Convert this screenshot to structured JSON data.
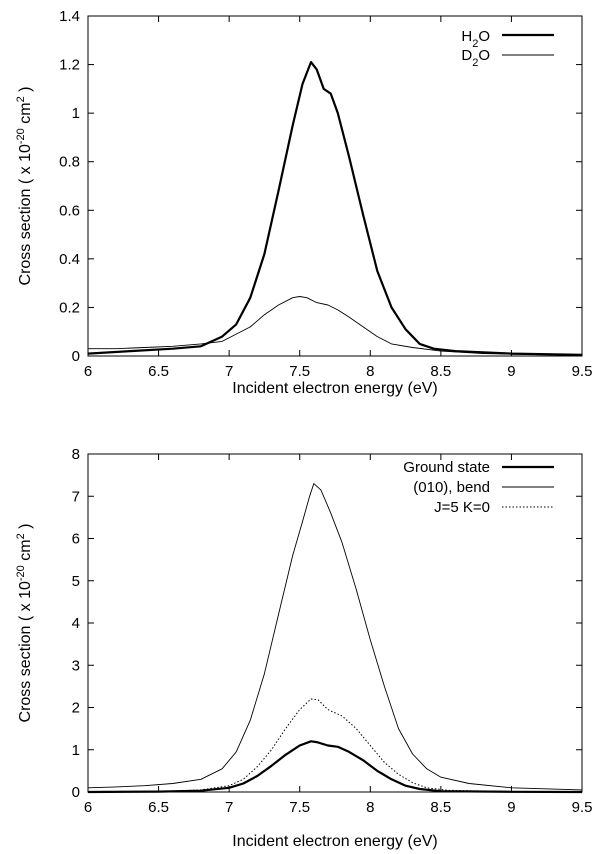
{
  "chart_data": [
    {
      "type": "line",
      "xlabel": "Incident electron energy (eV)",
      "ylabel": "Cross section ( x 10",
      "ylabel_sup": "-20",
      "ylabel_tail": " cm",
      "ylabel_sup2": "2",
      "ylabel_end": " )",
      "xlim": [
        6,
        9.5
      ],
      "ylim": [
        0,
        1.4
      ],
      "xticks": [
        6,
        6.5,
        7,
        7.5,
        8,
        8.5,
        9,
        9.5
      ],
      "xtick_labels": [
        "6",
        "6.5",
        "7",
        "7.5",
        "8",
        "8.5",
        "9",
        "9.5"
      ],
      "yticks": [
        0,
        0.2,
        0.4,
        0.6,
        0.8,
        1,
        1.2,
        1.4
      ],
      "ytick_labels": [
        "0",
        "0.2",
        "0.4",
        "0.6",
        "0.8",
        "1",
        "1.2",
        "1.4"
      ],
      "grid": false,
      "legend_position": "top-right",
      "series": [
        {
          "name": "H2O",
          "name_parts": [
            "H",
            "2",
            "O"
          ],
          "style": "thick",
          "points": [
            [
              6.0,
              0.01
            ],
            [
              6.3,
              0.02
            ],
            [
              6.6,
              0.03
            ],
            [
              6.8,
              0.04
            ],
            [
              6.95,
              0.08
            ],
            [
              7.05,
              0.13
            ],
            [
              7.15,
              0.24
            ],
            [
              7.25,
              0.42
            ],
            [
              7.35,
              0.68
            ],
            [
              7.45,
              0.95
            ],
            [
              7.52,
              1.12
            ],
            [
              7.58,
              1.21
            ],
            [
              7.62,
              1.18
            ],
            [
              7.67,
              1.1
            ],
            [
              7.72,
              1.08
            ],
            [
              7.77,
              1.0
            ],
            [
              7.85,
              0.82
            ],
            [
              7.95,
              0.58
            ],
            [
              8.05,
              0.35
            ],
            [
              8.15,
              0.2
            ],
            [
              8.25,
              0.11
            ],
            [
              8.35,
              0.05
            ],
            [
              8.45,
              0.03
            ],
            [
              8.6,
              0.02
            ],
            [
              9.0,
              0.01
            ],
            [
              9.5,
              0.005
            ]
          ]
        },
        {
          "name": "D2O",
          "name_parts": [
            "D",
            "2",
            "O"
          ],
          "style": "thin",
          "points": [
            [
              6.0,
              0.03
            ],
            [
              6.2,
              0.03
            ],
            [
              6.4,
              0.035
            ],
            [
              6.6,
              0.04
            ],
            [
              6.8,
              0.05
            ],
            [
              6.95,
              0.06
            ],
            [
              7.05,
              0.09
            ],
            [
              7.15,
              0.12
            ],
            [
              7.25,
              0.17
            ],
            [
              7.35,
              0.21
            ],
            [
              7.45,
              0.24
            ],
            [
              7.5,
              0.245
            ],
            [
              7.55,
              0.24
            ],
            [
              7.62,
              0.22
            ],
            [
              7.7,
              0.21
            ],
            [
              7.77,
              0.19
            ],
            [
              7.85,
              0.16
            ],
            [
              7.95,
              0.12
            ],
            [
              8.05,
              0.08
            ],
            [
              8.15,
              0.05
            ],
            [
              8.3,
              0.035
            ],
            [
              8.5,
              0.02
            ],
            [
              8.8,
              0.01
            ],
            [
              9.2,
              0.006
            ],
            [
              9.5,
              0.005
            ]
          ]
        }
      ]
    },
    {
      "type": "line",
      "xlabel": "Incident electron energy (eV)",
      "ylabel": "Cross section ( x 10",
      "ylabel_sup": "-20",
      "ylabel_tail": " cm",
      "ylabel_sup2": "2",
      "ylabel_end": " )",
      "xlim": [
        6,
        9.5
      ],
      "ylim": [
        0,
        8
      ],
      "xticks": [
        6,
        6.5,
        7,
        7.5,
        8,
        8.5,
        9,
        9.5
      ],
      "xtick_labels": [
        "6",
        "6.5",
        "7",
        "7.5",
        "8",
        "8.5",
        "9",
        "9.5"
      ],
      "yticks": [
        0,
        1,
        2,
        3,
        4,
        5,
        6,
        7,
        8
      ],
      "ytick_labels": [
        "0",
        "1",
        "2",
        "3",
        "4",
        "5",
        "6",
        "7",
        "8"
      ],
      "grid": false,
      "legend_position": "top-right",
      "series": [
        {
          "name": "Ground state",
          "style": "thick",
          "points": [
            [
              6.0,
              0.0
            ],
            [
              6.5,
              0.01
            ],
            [
              6.8,
              0.03
            ],
            [
              7.0,
              0.1
            ],
            [
              7.1,
              0.2
            ],
            [
              7.2,
              0.38
            ],
            [
              7.3,
              0.62
            ],
            [
              7.4,
              0.88
            ],
            [
              7.5,
              1.1
            ],
            [
              7.58,
              1.2
            ],
            [
              7.62,
              1.18
            ],
            [
              7.7,
              1.1
            ],
            [
              7.77,
              1.07
            ],
            [
              7.85,
              0.95
            ],
            [
              7.95,
              0.75
            ],
            [
              8.05,
              0.5
            ],
            [
              8.15,
              0.3
            ],
            [
              8.25,
              0.15
            ],
            [
              8.35,
              0.07
            ],
            [
              8.5,
              0.02
            ],
            [
              9.0,
              0.005
            ],
            [
              9.5,
              0.0
            ]
          ]
        },
        {
          "name": "(010), bend",
          "style": "thin",
          "points": [
            [
              6.0,
              0.1
            ],
            [
              6.2,
              0.12
            ],
            [
              6.4,
              0.15
            ],
            [
              6.6,
              0.2
            ],
            [
              6.8,
              0.3
            ],
            [
              6.95,
              0.55
            ],
            [
              7.05,
              0.95
            ],
            [
              7.15,
              1.7
            ],
            [
              7.25,
              2.8
            ],
            [
              7.35,
              4.2
            ],
            [
              7.45,
              5.6
            ],
            [
              7.52,
              6.4
            ],
            [
              7.57,
              7.0
            ],
            [
              7.6,
              7.3
            ],
            [
              7.65,
              7.15
            ],
            [
              7.72,
              6.6
            ],
            [
              7.8,
              5.9
            ],
            [
              7.9,
              4.8
            ],
            [
              8.0,
              3.6
            ],
            [
              8.1,
              2.5
            ],
            [
              8.2,
              1.5
            ],
            [
              8.3,
              0.9
            ],
            [
              8.4,
              0.55
            ],
            [
              8.5,
              0.35
            ],
            [
              8.7,
              0.2
            ],
            [
              9.0,
              0.1
            ],
            [
              9.5,
              0.05
            ]
          ]
        },
        {
          "name": "J=5 K=0",
          "style": "dotted",
          "points": [
            [
              6.0,
              0.0
            ],
            [
              6.5,
              0.01
            ],
            [
              6.8,
              0.05
            ],
            [
              7.0,
              0.15
            ],
            [
              7.1,
              0.3
            ],
            [
              7.2,
              0.6
            ],
            [
              7.3,
              1.0
            ],
            [
              7.4,
              1.5
            ],
            [
              7.5,
              1.95
            ],
            [
              7.58,
              2.2
            ],
            [
              7.63,
              2.18
            ],
            [
              7.7,
              1.95
            ],
            [
              7.8,
              1.8
            ],
            [
              7.9,
              1.5
            ],
            [
              8.0,
              1.1
            ],
            [
              8.1,
              0.7
            ],
            [
              8.2,
              0.42
            ],
            [
              8.3,
              0.22
            ],
            [
              8.4,
              0.1
            ],
            [
              8.55,
              0.04
            ],
            [
              9.0,
              0.01
            ],
            [
              9.5,
              0.0
            ]
          ]
        }
      ]
    }
  ]
}
